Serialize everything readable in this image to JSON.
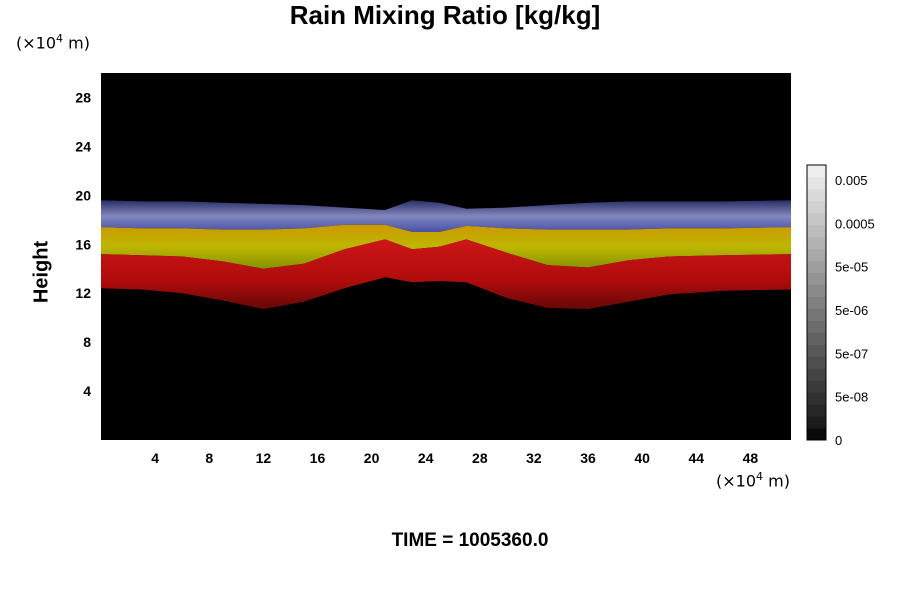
{
  "chart_data": {
    "type": "heatmap",
    "title": "Rain Mixing Ratio [kg/kg]",
    "ylabel": "Height",
    "x_unit": "m",
    "y_unit": "m",
    "unit_scale_exponent": "4",
    "xlim": [
      0,
      51
    ],
    "ylim": [
      0,
      30
    ],
    "xticks": [
      "4",
      "8",
      "12",
      "16",
      "20",
      "24",
      "28",
      "32",
      "36",
      "40",
      "44",
      "48"
    ],
    "yticks": [
      "4",
      "8",
      "12",
      "16",
      "20",
      "24",
      "28"
    ],
    "colorbar": {
      "labels": [
        "0.005",
        "0.0005",
        "5e-05",
        "5e-06",
        "5e-07",
        "5e-08",
        "0"
      ],
      "colors": [
        "#0a0a0a",
        "#1c1c1c",
        "#262626",
        "#303030",
        "#3a3a3a",
        "#444444",
        "#4e4e4e",
        "#585858",
        "#626262",
        "#6c6c6c",
        "#767676",
        "#808080",
        "#8a8a8a",
        "#949494",
        "#9e9e9e",
        "#a8a8a8",
        "#b2b2b2",
        "#bcbcbc",
        "#c6c6c6",
        "#d0d0d0",
        "#dadada",
        "#e4e4e4",
        "#eeeeee"
      ]
    },
    "bands": [
      {
        "name": "blue",
        "color": "#5c64b4",
        "top": [
          19.6,
          19.5,
          19.5,
          19.4,
          19.3,
          19.2,
          19.0,
          18.8,
          19.6,
          19.4,
          18.9,
          19.0,
          19.2,
          19.4,
          19.5,
          19.5,
          19.5,
          19.6
        ],
        "bottom": [
          17.4,
          17.3,
          17.3,
          17.2,
          17.2,
          17.3,
          17.6,
          17.6,
          17.0,
          17.0,
          17.5,
          17.3,
          17.2,
          17.2,
          17.2,
          17.3,
          17.3,
          17.4
        ]
      },
      {
        "name": "yellow",
        "color": "#b8b000",
        "top": [
          17.4,
          17.3,
          17.3,
          17.2,
          17.2,
          17.3,
          17.6,
          17.6,
          17.0,
          17.0,
          17.5,
          17.3,
          17.2,
          17.2,
          17.2,
          17.3,
          17.3,
          17.4
        ],
        "bottom": [
          15.2,
          15.1,
          15.0,
          14.6,
          14.0,
          14.4,
          15.6,
          16.4,
          15.6,
          15.8,
          16.4,
          15.3,
          14.3,
          14.1,
          14.7,
          15.0,
          15.1,
          15.2
        ]
      },
      {
        "name": "red",
        "color": "#c01010",
        "top": [
          15.2,
          15.1,
          15.0,
          14.6,
          14.0,
          14.4,
          15.6,
          16.4,
          15.6,
          15.8,
          16.4,
          15.3,
          14.3,
          14.1,
          14.7,
          15.0,
          15.1,
          15.2
        ],
        "bottom": [
          12.4,
          12.3,
          12.0,
          11.4,
          10.7,
          11.3,
          12.4,
          13.3,
          12.9,
          13.0,
          12.9,
          11.6,
          10.8,
          10.7,
          11.3,
          11.9,
          12.2,
          12.3
        ]
      }
    ],
    "band_x": [
      0,
      3,
      6,
      9,
      12,
      15,
      18,
      21,
      23,
      25,
      27,
      30,
      33,
      36,
      39,
      42,
      46,
      51
    ]
  },
  "time_label": "TIME = 1005360.0"
}
